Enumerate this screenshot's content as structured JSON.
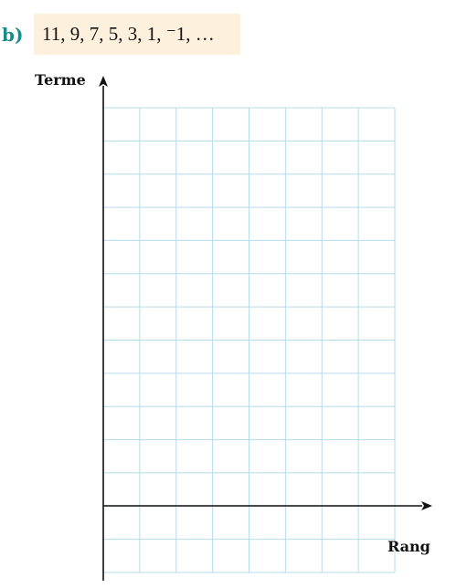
{
  "exercise": {
    "label": "b)",
    "sequence": "11, 9, 7, 5, 3, 1, ⁻1, …"
  },
  "graph": {
    "y_axis_label": "Terme",
    "x_axis_label": "Rang",
    "grid_columns": 8,
    "grid_rows": 14,
    "grid_color": "#b6dcec",
    "axis_color": "#111111"
  }
}
